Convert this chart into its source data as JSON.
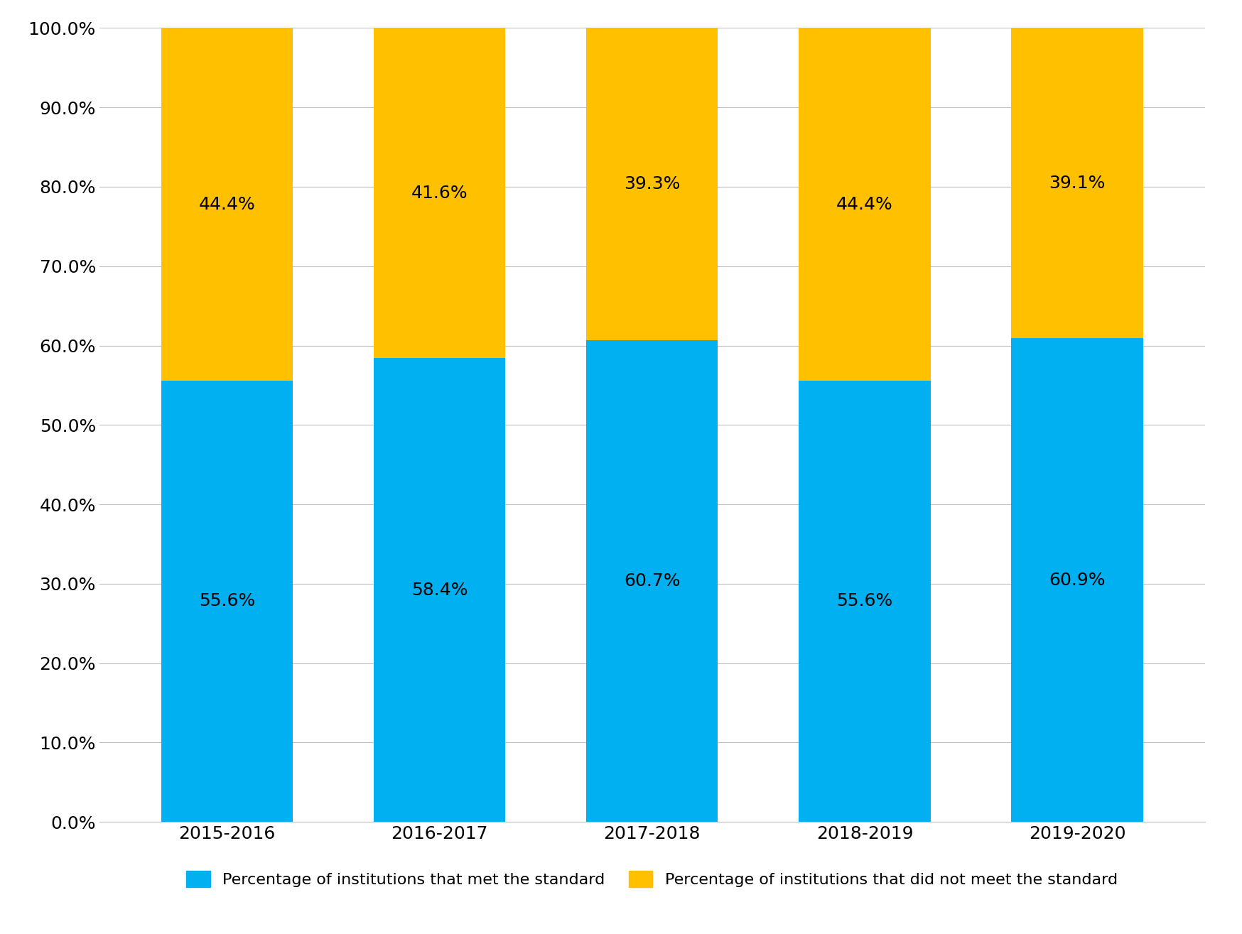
{
  "categories": [
    "2015-2016",
    "2016-2017",
    "2017-2018",
    "2018-2019",
    "2019-2020"
  ],
  "met_values": [
    55.6,
    58.4,
    60.7,
    55.6,
    60.9
  ],
  "not_met_values": [
    44.4,
    41.6,
    39.3,
    44.4,
    39.1
  ],
  "met_color": "#00B0F0",
  "not_met_color": "#FFC000",
  "met_label": "Percentage of institutions that met the standard",
  "not_met_label": "Percentage of institutions that did not meet the standard",
  "ylim": [
    0,
    100
  ],
  "ytick_labels": [
    "0.0%",
    "10.0%",
    "20.0%",
    "30.0%",
    "40.0%",
    "50.0%",
    "60.0%",
    "70.0%",
    "80.0%",
    "90.0%",
    "100.0%"
  ],
  "ytick_values": [
    0,
    10,
    20,
    30,
    40,
    50,
    60,
    70,
    80,
    90,
    100
  ],
  "background_color": "#ffffff",
  "bar_width": 0.62,
  "tick_fontsize": 18,
  "legend_fontsize": 16,
  "annotation_fontsize": 18
}
